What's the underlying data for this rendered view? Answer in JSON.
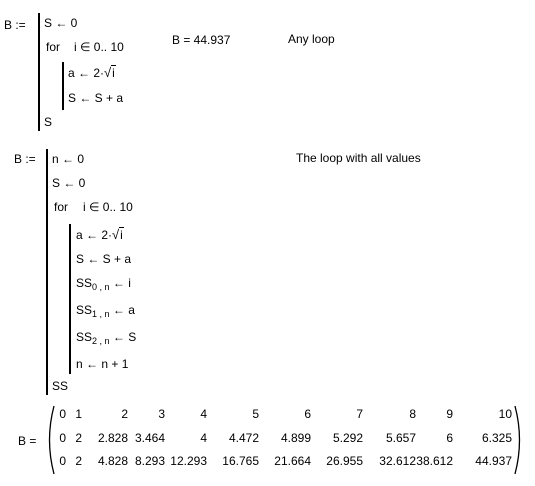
{
  "worksheet": {
    "block1": {
      "lhs": "B :=",
      "line1": "S ← 0",
      "for_kw": "for",
      "for_expr": "i ∈ 0.. 10",
      "a_assign_pre": "a ← 2·",
      "a_assign_arg": "i",
      "s_update": "S ← S + a",
      "ret": "S",
      "result": "B = 44.937",
      "comment": "Any loop"
    },
    "block2": {
      "lhs": "B :=",
      "line1": "n ← 0",
      "line2": "S ← 0",
      "for_kw": "for",
      "for_expr": "i ∈ 0.. 10",
      "a_assign_pre": "a ← 2·",
      "a_assign_arg": "i",
      "s_update": "S ← S + a",
      "ss0_base": "SS",
      "ss0_sub": "0 , n",
      "ss0_rhs": "← i",
      "ss1_base": "SS",
      "ss1_sub": "1 , n",
      "ss1_rhs": "← a",
      "ss2_base": "SS",
      "ss2_sub": "2 , n",
      "ss2_rhs": "← S",
      "n_inc": "n ← n + 1",
      "ret": "SS",
      "comment": "The loop with all values"
    },
    "matrix": {
      "lhs": "B =",
      "rows": [
        [
          "0",
          "1",
          "2",
          "3",
          "4",
          "5",
          "6",
          "7",
          "8",
          "9",
          "10"
        ],
        [
          "0",
          "2",
          "2.828",
          "3.464",
          "4",
          "4.472",
          "4.899",
          "5.292",
          "5.657",
          "6",
          "6.325"
        ],
        [
          "0",
          "2",
          "4.828",
          "8.293",
          "12.293",
          "16.765",
          "21.664",
          "26.955",
          "32.612",
          "38.612",
          "44.937"
        ]
      ]
    }
  }
}
